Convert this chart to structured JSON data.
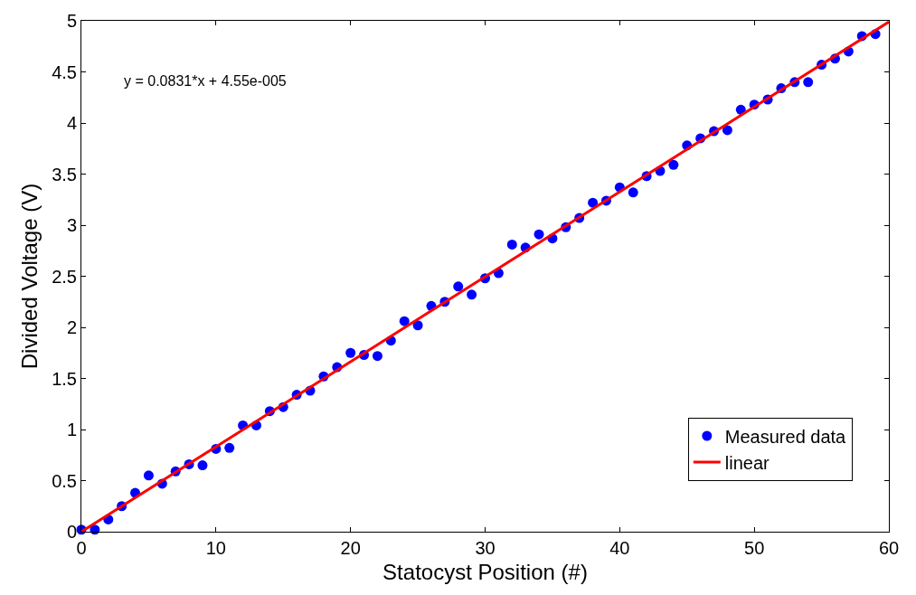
{
  "chart_data": {
    "type": "scatter",
    "xlabel": "Statocyst Position (#)",
    "ylabel": "Divided Voltage (V)",
    "annotations": [
      "y = 0.0831*x + 4.55e-005"
    ],
    "xlim": [
      0,
      60
    ],
    "xticks": [
      0,
      10,
      20,
      30,
      40,
      50,
      60
    ],
    "ylim": [
      0,
      5
    ],
    "yticks": [
      0,
      0.5,
      1,
      1.5,
      2,
      2.5,
      3,
      3.5,
      4,
      4.5,
      5
    ],
    "grid": false,
    "legend": "bottom right",
    "series": [
      {
        "name": "Measured data",
        "type": "scatter",
        "marker": "circle",
        "color": "#0000ff",
        "x": [
          0,
          1,
          2,
          3,
          4,
          5,
          6,
          7,
          8,
          9,
          10,
          11,
          12,
          13,
          14,
          15,
          16,
          17,
          18,
          19,
          20,
          21,
          22,
          23,
          24,
          25,
          26,
          27,
          28,
          29,
          30,
          31,
          32,
          33,
          34,
          35,
          36,
          37,
          38,
          39,
          40,
          41,
          42,
          43,
          44,
          45,
          46,
          47,
          48,
          49,
          50,
          51,
          52,
          53,
          54,
          55,
          56,
          57,
          58,
          59
        ],
        "values": [
          0.02,
          0.02,
          0.12,
          0.25,
          0.38,
          0.55,
          0.47,
          0.59,
          0.66,
          0.65,
          0.81,
          0.82,
          1.04,
          1.04,
          1.18,
          1.22,
          1.34,
          1.38,
          1.52,
          1.61,
          1.75,
          1.73,
          1.72,
          1.87,
          2.06,
          2.02,
          2.21,
          2.25,
          2.4,
          2.32,
          2.48,
          2.53,
          2.81,
          2.78,
          2.91,
          2.87,
          2.98,
          3.07,
          3.22,
          3.24,
          3.37,
          3.32,
          3.48,
          3.53,
          3.59,
          3.78,
          3.85,
          3.92,
          3.93,
          4.13,
          4.18,
          4.23,
          4.34,
          4.4,
          4.4,
          4.57,
          4.63,
          4.7,
          4.85,
          4.87
        ]
      },
      {
        "name": "linear",
        "type": "line",
        "color": "#ff0000",
        "line_style": "solid",
        "x": [
          0,
          60
        ],
        "values": [
          0,
          4.99
        ]
      }
    ]
  }
}
